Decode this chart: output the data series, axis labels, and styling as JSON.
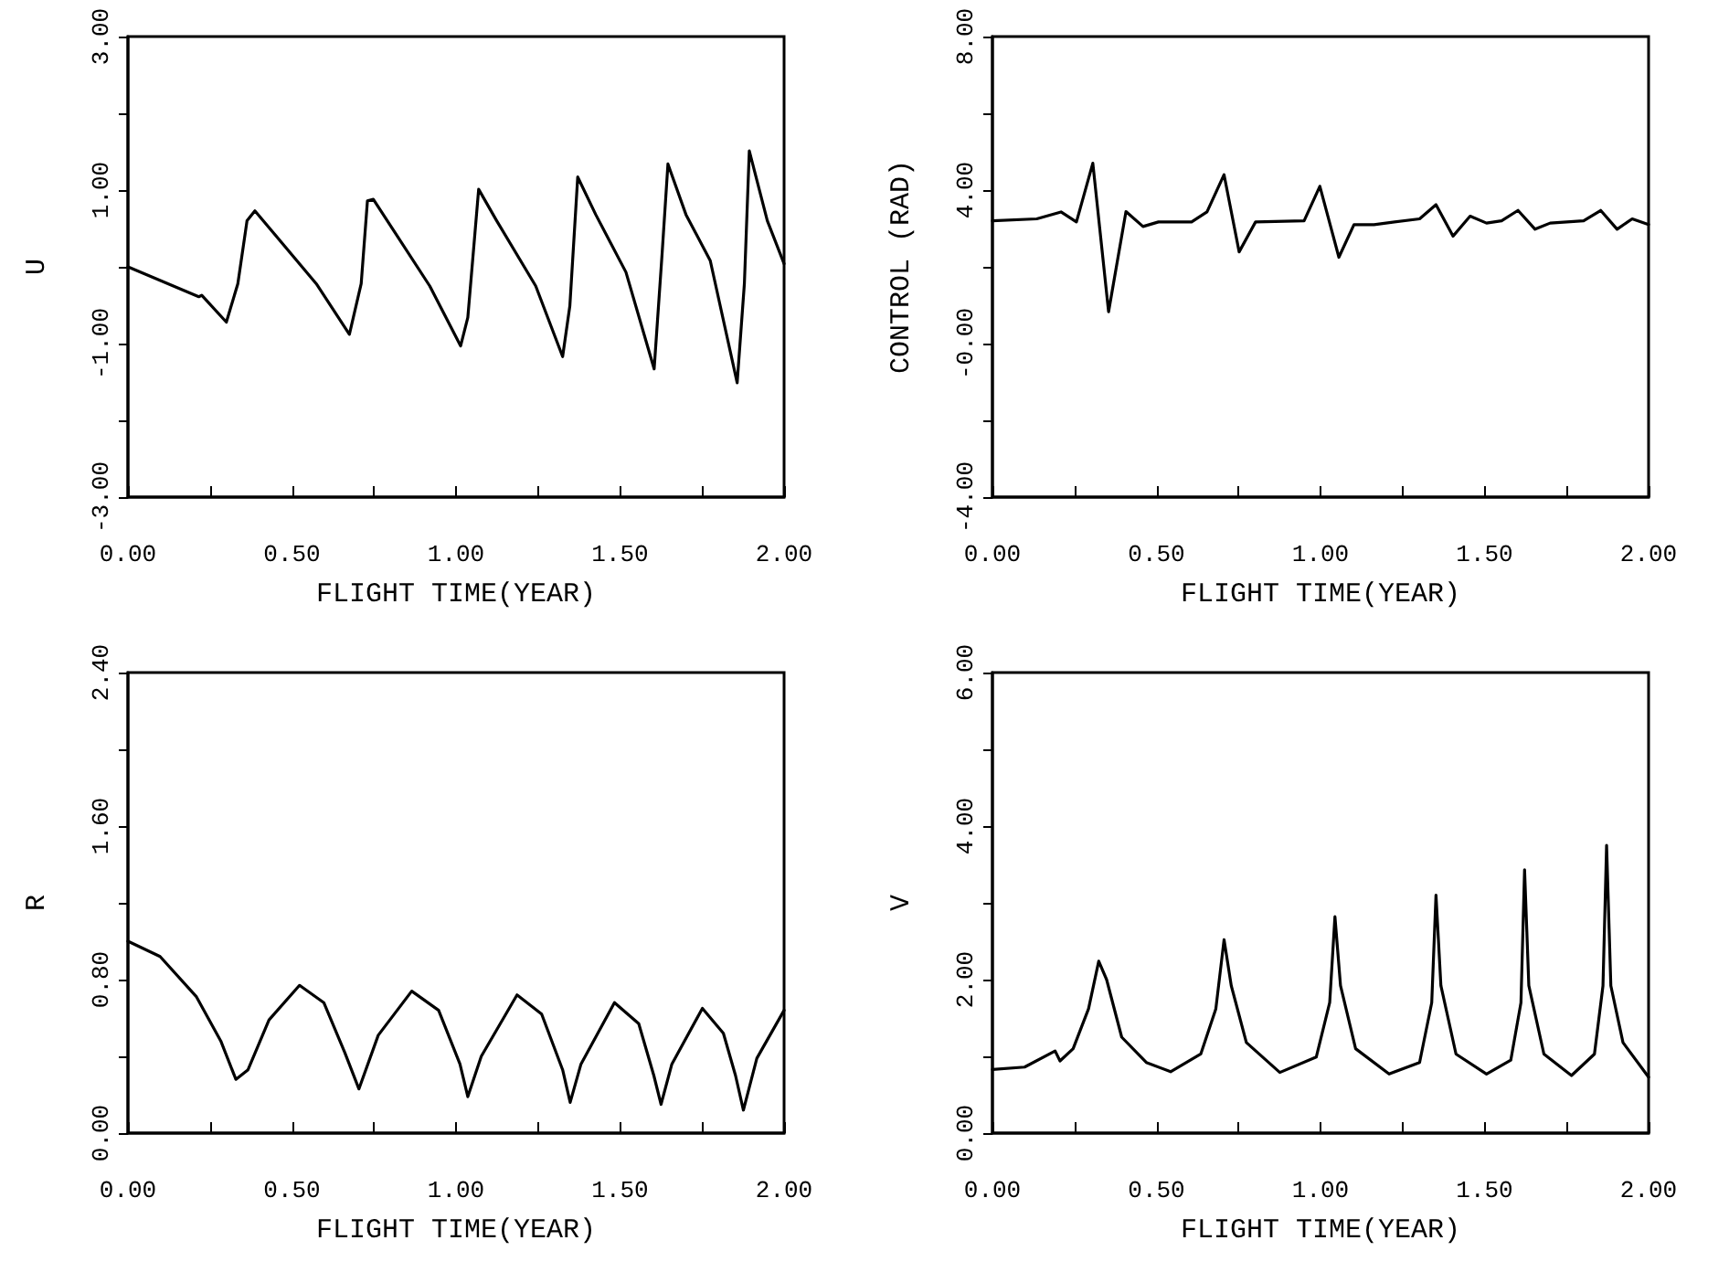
{
  "chart_data": [
    {
      "type": "line",
      "xlabel": "FLIGHT TIME(YEAR)",
      "ylabel": "U",
      "xlim": [
        0,
        2
      ],
      "ylim": [
        -3,
        3
      ],
      "grid": false,
      "marker": "none",
      "xticks": [
        {
          "value": 0,
          "label": "0.00"
        },
        {
          "value": 0.25,
          "label": null
        },
        {
          "value": 0.5,
          "label": "0.50"
        },
        {
          "value": 0.75,
          "label": null
        },
        {
          "value": 1,
          "label": "1.00"
        },
        {
          "value": 1.25,
          "label": null
        },
        {
          "value": 1.5,
          "label": "1.50"
        },
        {
          "value": 1.75,
          "label": null
        },
        {
          "value": 2,
          "label": "2.00"
        }
      ],
      "yticks": [
        {
          "value": -3,
          "label": "-3.00"
        },
        {
          "value": -2,
          "label": null
        },
        {
          "value": -1,
          "label": "-1.00"
        },
        {
          "value": 0,
          "label": null
        },
        {
          "value": 1,
          "label": "1.00"
        },
        {
          "value": 2,
          "label": null
        },
        {
          "value": 3,
          "label": "3.00"
        }
      ],
      "x": [
        0,
        0.216,
        0.225,
        0.3,
        0.335,
        0.363,
        0.387,
        0.574,
        0.675,
        0.711,
        0.73,
        0.748,
        0.92,
        1.014,
        1.036,
        1.069,
        1.124,
        1.243,
        1.325,
        1.347,
        1.371,
        1.426,
        1.518,
        1.604,
        1.628,
        1.646,
        1.701,
        1.775,
        1.857,
        1.879,
        1.894,
        1.949,
        2.0
      ],
      "series": [
        {
          "color": "#000000",
          "values": [
            0,
            -0.39,
            -0.37,
            -0.72,
            -0.22,
            0.6,
            0.73,
            -0.22,
            -0.88,
            -0.22,
            0.86,
            0.88,
            -0.25,
            -1.03,
            -0.66,
            1.01,
            0.6,
            -0.25,
            -1.17,
            -0.51,
            1.17,
            0.68,
            -0.07,
            -1.33,
            0.16,
            1.34,
            0.68,
            0.08,
            -1.51,
            -0.22,
            1.51,
            0.6,
            0.04
          ]
        }
      ]
    },
    {
      "type": "line",
      "xlabel": "FLIGHT TIME(YEAR)",
      "ylabel": "CONTROL (RAD)",
      "xlim": [
        0,
        2
      ],
      "ylim": [
        -4,
        8
      ],
      "grid": false,
      "marker": "none",
      "xticks": [
        {
          "value": 0,
          "label": "0.00"
        },
        {
          "value": 0.25,
          "label": null
        },
        {
          "value": 0.5,
          "label": "0.50"
        },
        {
          "value": 0.75,
          "label": null
        },
        {
          "value": 1,
          "label": "1.00"
        },
        {
          "value": 1.25,
          "label": null
        },
        {
          "value": 1.5,
          "label": "1.50"
        },
        {
          "value": 1.75,
          "label": null
        },
        {
          "value": 2,
          "label": "2.00"
        }
      ],
      "yticks": [
        {
          "value": -4,
          "label": "-4.00"
        },
        {
          "value": -2,
          "label": null
        },
        {
          "value": 0,
          "label": "-0.00"
        },
        {
          "value": 2,
          "label": null
        },
        {
          "value": 4,
          "label": "4.00"
        },
        {
          "value": 6,
          "label": null
        },
        {
          "value": 8,
          "label": "8.00"
        }
      ],
      "x": [
        0,
        0.135,
        0.209,
        0.256,
        0.306,
        0.354,
        0.407,
        0.459,
        0.506,
        0.607,
        0.654,
        0.706,
        0.752,
        0.802,
        0.95,
        0.998,
        1.056,
        1.102,
        1.163,
        1.302,
        1.352,
        1.404,
        1.456,
        1.506,
        1.552,
        1.602,
        1.654,
        1.7,
        1.802,
        1.854,
        1.904,
        1.95,
        2.0
      ],
      "series": [
        {
          "color": "#000000",
          "values": [
            3.2,
            3.25,
            3.43,
            3.17,
            4.7,
            0.83,
            3.44,
            3.05,
            3.17,
            3.17,
            3.43,
            4.4,
            2.39,
            3.17,
            3.2,
            4.1,
            2.25,
            3.1,
            3.1,
            3.25,
            3.62,
            2.8,
            3.32,
            3.14,
            3.2,
            3.47,
            2.98,
            3.14,
            3.2,
            3.47,
            2.98,
            3.25,
            3.1
          ]
        }
      ]
    },
    {
      "type": "line",
      "xlabel": "FLIGHT TIME(YEAR)",
      "ylabel": "R",
      "xlim": [
        0,
        2
      ],
      "ylim": [
        0,
        2.4
      ],
      "grid": false,
      "marker": "none",
      "xticks": [
        {
          "value": 0,
          "label": "0.00"
        },
        {
          "value": 0.25,
          "label": null
        },
        {
          "value": 0.5,
          "label": "0.50"
        },
        {
          "value": 0.75,
          "label": null
        },
        {
          "value": 1,
          "label": "1.00"
        },
        {
          "value": 1.25,
          "label": null
        },
        {
          "value": 1.5,
          "label": "1.50"
        },
        {
          "value": 1.75,
          "label": null
        },
        {
          "value": 2,
          "label": "2.00"
        }
      ],
      "yticks": [
        {
          "value": 0,
          "label": "0.00"
        },
        {
          "value": 0.4,
          "label": null
        },
        {
          "value": 0.8,
          "label": "0.80"
        },
        {
          "value": 1.2,
          "label": null
        },
        {
          "value": 1.6,
          "label": "1.60"
        },
        {
          "value": 2.0,
          "label": null
        },
        {
          "value": 2.4,
          "label": "2.40"
        }
      ],
      "x": [
        0,
        0.098,
        0.209,
        0.283,
        0.329,
        0.366,
        0.43,
        0.523,
        0.597,
        0.661,
        0.704,
        0.763,
        0.865,
        0.947,
        1.012,
        1.036,
        1.077,
        1.186,
        1.261,
        1.325,
        1.348,
        1.381,
        1.483,
        1.557,
        1.603,
        1.625,
        1.658,
        1.751,
        1.815,
        1.852,
        1.876,
        1.917,
        2.0
      ],
      "series": [
        {
          "color": "#000000",
          "values": [
            1.0,
            0.92,
            0.71,
            0.48,
            0.28,
            0.33,
            0.59,
            0.77,
            0.68,
            0.42,
            0.23,
            0.51,
            0.74,
            0.64,
            0.36,
            0.19,
            0.4,
            0.72,
            0.62,
            0.33,
            0.16,
            0.36,
            0.68,
            0.57,
            0.3,
            0.15,
            0.36,
            0.65,
            0.52,
            0.3,
            0.12,
            0.39,
            0.64
          ]
        }
      ]
    },
    {
      "type": "line",
      "xlabel": "FLIGHT TIME(YEAR)",
      "ylabel": "V",
      "xlim": [
        0,
        2
      ],
      "ylim": [
        0,
        6
      ],
      "grid": false,
      "marker": "none",
      "xticks": [
        {
          "value": 0,
          "label": "0.00"
        },
        {
          "value": 0.25,
          "label": null
        },
        {
          "value": 0.5,
          "label": "0.50"
        },
        {
          "value": 0.75,
          "label": null
        },
        {
          "value": 1,
          "label": "1.00"
        },
        {
          "value": 1.25,
          "label": null
        },
        {
          "value": 1.5,
          "label": "1.50"
        },
        {
          "value": 1.75,
          "label": null
        },
        {
          "value": 2,
          "label": "2.00"
        }
      ],
      "yticks": [
        {
          "value": 0,
          "label": "0.00"
        },
        {
          "value": 1,
          "label": null
        },
        {
          "value": 2,
          "label": "2.00"
        },
        {
          "value": 3,
          "label": null
        },
        {
          "value": 4,
          "label": "4.00"
        },
        {
          "value": 5,
          "label": null
        },
        {
          "value": 6,
          "label": "6.00"
        }
      ],
      "x": [
        0,
        0.098,
        0.191,
        0.206,
        0.246,
        0.293,
        0.324,
        0.348,
        0.394,
        0.469,
        0.543,
        0.635,
        0.681,
        0.706,
        0.728,
        0.774,
        0.876,
        0.987,
        1.028,
        1.044,
        1.061,
        1.107,
        1.209,
        1.302,
        1.339,
        1.352,
        1.367,
        1.413,
        1.506,
        1.58,
        1.611,
        1.622,
        1.635,
        1.681,
        1.765,
        1.835,
        1.861,
        1.872,
        1.885,
        1.922,
        2.0
      ],
      "series": [
        {
          "color": "#000000",
          "values": [
            0.83,
            0.86,
            1.07,
            0.94,
            1.1,
            1.62,
            2.24,
            2.0,
            1.25,
            0.92,
            0.8,
            1.03,
            1.62,
            2.52,
            1.92,
            1.18,
            0.79,
            0.99,
            1.7,
            2.82,
            1.92,
            1.1,
            0.77,
            0.92,
            1.7,
            3.1,
            1.92,
            1.03,
            0.77,
            0.95,
            1.7,
            3.43,
            1.92,
            1.03,
            0.75,
            1.03,
            1.92,
            3.75,
            1.92,
            1.18,
            0.73
          ]
        }
      ]
    }
  ]
}
